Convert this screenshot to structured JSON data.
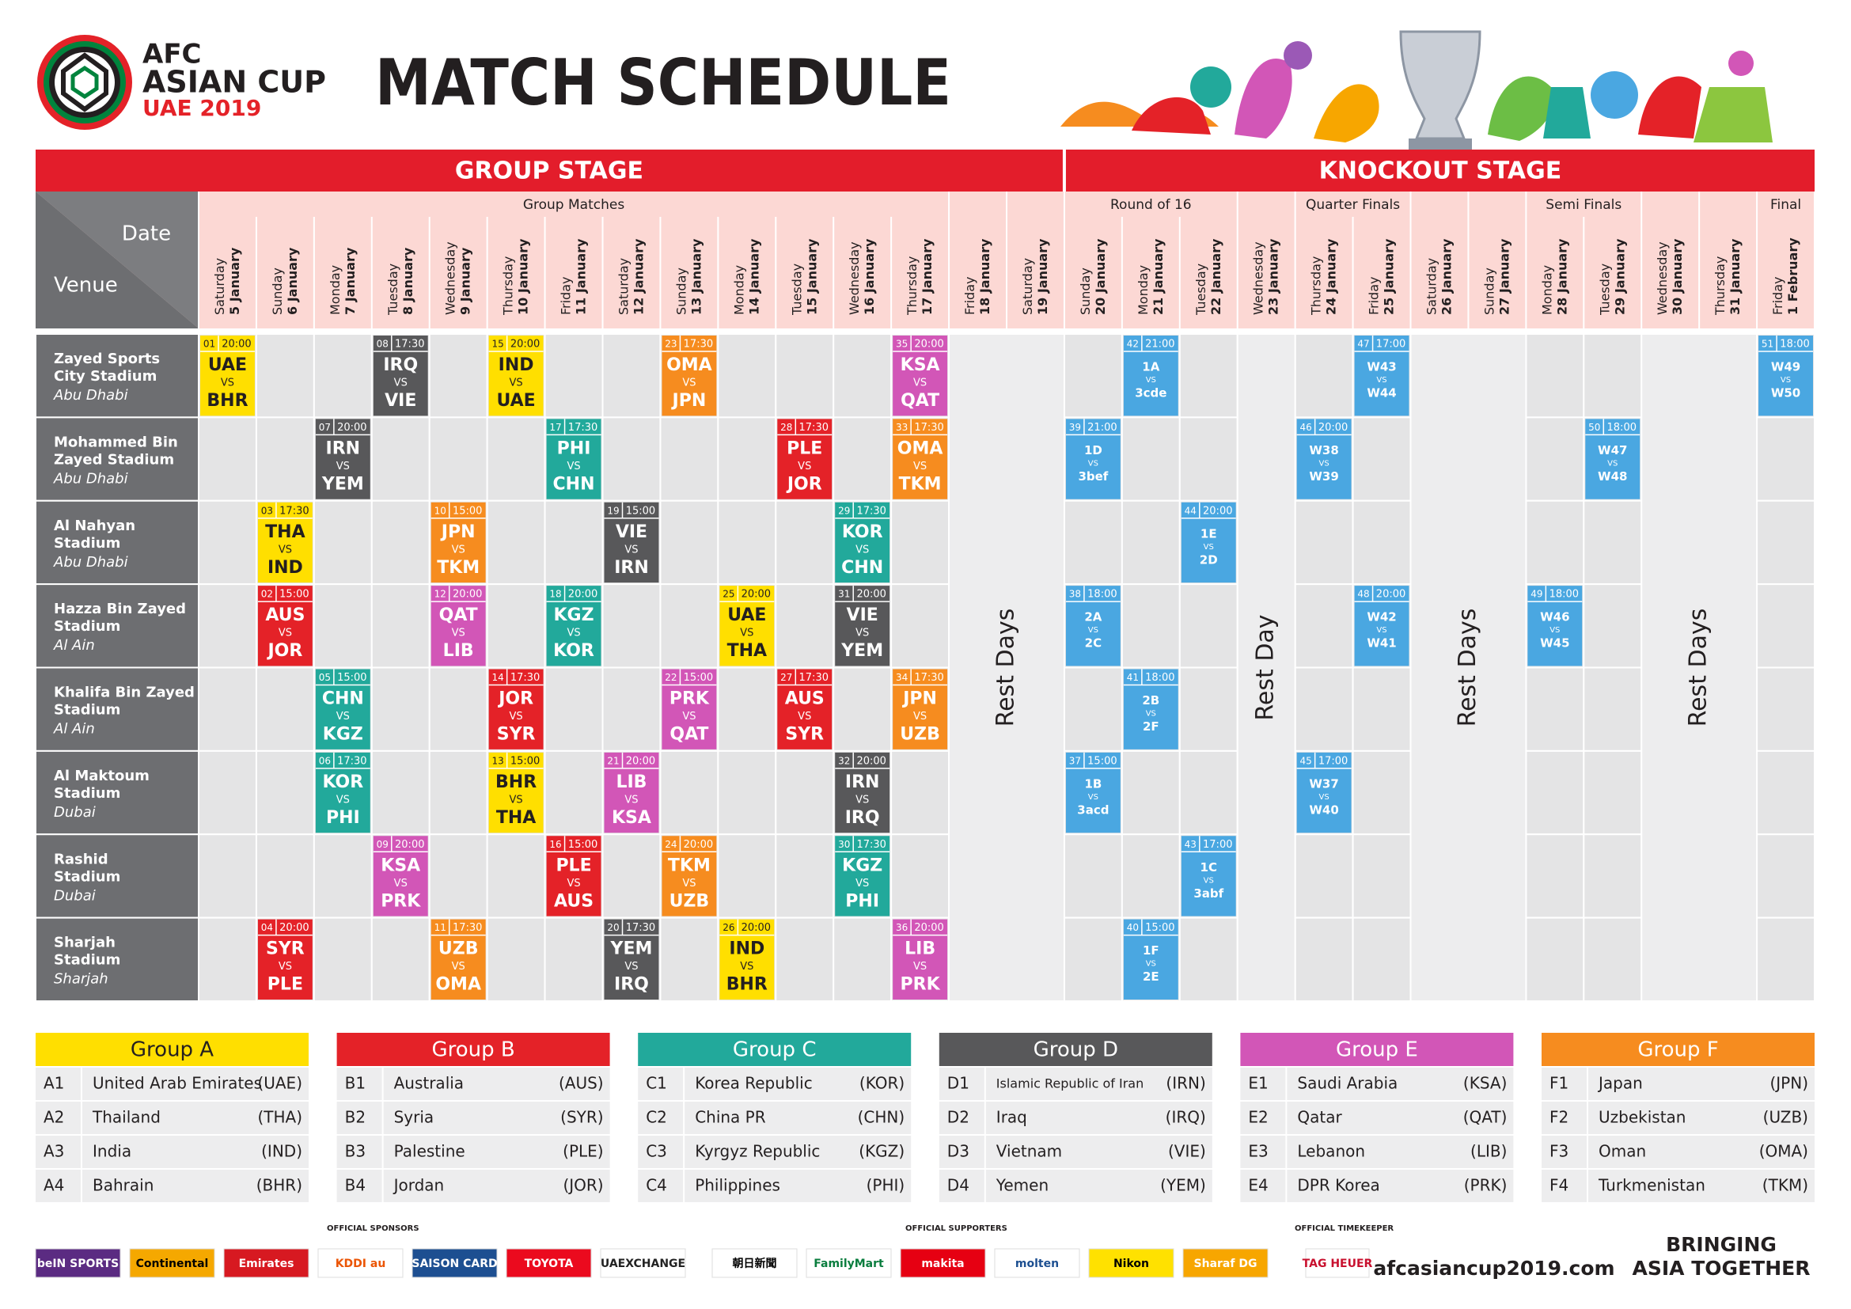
{
  "header": {
    "logo": [
      "AFC",
      "ASIAN CUP",
      "UAE 2019"
    ],
    "title": "MATCH SCHEDULE"
  },
  "schedule": {
    "corner": {
      "date": "Date",
      "venue": "Venue"
    },
    "stages": [
      {
        "title": "GROUP STAGE",
        "from": "5 January",
        "to": "19 January"
      },
      {
        "title": "KNOCKOUT STAGE",
        "from": "20 January",
        "to": "1 February"
      }
    ],
    "rounds": [
      {
        "title": "Group Matches",
        "from": "5 January",
        "to": "17 January"
      },
      {
        "title": "Round of 16",
        "from": "20 January",
        "to": "22 January"
      },
      {
        "title": "Quarter Finals",
        "from": "24 January",
        "to": "25 January"
      },
      {
        "title": "Semi Finals",
        "from": "28 January",
        "to": "29 January"
      },
      {
        "title": "Final",
        "from": "1 February",
        "to": "1 February"
      }
    ],
    "dates": [
      {
        "weekday": "Saturday",
        "day": "5 January"
      },
      {
        "weekday": "Sunday",
        "day": "6 January"
      },
      {
        "weekday": "Monday",
        "day": "7 January"
      },
      {
        "weekday": "Tuesday",
        "day": "8 January"
      },
      {
        "weekday": "Wednesday",
        "day": "9 January"
      },
      {
        "weekday": "Thursday",
        "day": "10 January"
      },
      {
        "weekday": "Friday",
        "day": "11 January"
      },
      {
        "weekday": "Saturday",
        "day": "12 January"
      },
      {
        "weekday": "Sunday",
        "day": "13 January"
      },
      {
        "weekday": "Monday",
        "day": "14 January"
      },
      {
        "weekday": "Tuesday",
        "day": "15 January"
      },
      {
        "weekday": "Wednesday",
        "day": "16 January"
      },
      {
        "weekday": "Thursday",
        "day": "17 January"
      },
      {
        "weekday": "Friday",
        "day": "18 January"
      },
      {
        "weekday": "Saturday",
        "day": "19 January"
      },
      {
        "weekday": "Sunday",
        "day": "20 January"
      },
      {
        "weekday": "Monday",
        "day": "21 January"
      },
      {
        "weekday": "Tuesday",
        "day": "22 January"
      },
      {
        "weekday": "Wednesday",
        "day": "23 January"
      },
      {
        "weekday": "Thursday",
        "day": "24 January"
      },
      {
        "weekday": "Friday",
        "day": "25 January"
      },
      {
        "weekday": "Saturday",
        "day": "26 January"
      },
      {
        "weekday": "Sunday",
        "day": "27 January"
      },
      {
        "weekday": "Monday",
        "day": "28 January"
      },
      {
        "weekday": "Tuesday",
        "day": "29 January"
      },
      {
        "weekday": "Wednesday",
        "day": "30 January"
      },
      {
        "weekday": "Thursday",
        "day": "31 January"
      },
      {
        "weekday": "Friday",
        "day": "1 February"
      }
    ],
    "rest": [
      {
        "label": "Rest Days",
        "from": "18 January",
        "to": "19 January"
      },
      {
        "label": "Rest Day",
        "from": "23 January",
        "to": "23 January"
      },
      {
        "label": "Rest Days",
        "from": "26 January",
        "to": "27 January"
      },
      {
        "label": "Rest Days",
        "from": "30 January",
        "to": "31 January"
      }
    ],
    "vs": "VS",
    "knockout_color": "#4aa7e1",
    "venues": [
      {
        "name": [
          "Zayed Sports",
          "City Stadium"
        ],
        "city": "Abu Dhabi",
        "matches": [
          {
            "date": "5 January",
            "no": "01",
            "time": "20:00",
            "home": "UAE",
            "away": "BHR"
          },
          {
            "date": "8 January",
            "no": "08",
            "time": "17:30",
            "home": "IRQ",
            "away": "VIE"
          },
          {
            "date": "10 January",
            "no": "15",
            "time": "20:00",
            "home": "IND",
            "away": "UAE"
          },
          {
            "date": "13 January",
            "no": "23",
            "time": "17:30",
            "home": "OMA",
            "away": "JPN"
          },
          {
            "date": "17 January",
            "no": "35",
            "time": "20:00",
            "home": "KSA",
            "away": "QAT"
          },
          {
            "date": "21 January",
            "no": "42",
            "time": "21:00",
            "home": "1A",
            "away": "3cde"
          },
          {
            "date": "25 January",
            "no": "47",
            "time": "17:00",
            "home": "W43",
            "away": "W44"
          },
          {
            "date": "1 February",
            "no": "51",
            "time": "18:00",
            "home": "W49",
            "away": "W50"
          }
        ]
      },
      {
        "name": [
          "Mohammed Bin",
          "Zayed Stadium"
        ],
        "city": "Abu Dhabi",
        "matches": [
          {
            "date": "7 January",
            "no": "07",
            "time": "20:00",
            "home": "IRN",
            "away": "YEM"
          },
          {
            "date": "11 January",
            "no": "17",
            "time": "17:30",
            "home": "PHI",
            "away": "CHN"
          },
          {
            "date": "15 January",
            "no": "28",
            "time": "17:30",
            "home": "PLE",
            "away": "JOR"
          },
          {
            "date": "17 January",
            "no": "33",
            "time": "17:30",
            "home": "OMA",
            "away": "TKM"
          },
          {
            "date": "20 January",
            "no": "39",
            "time": "21:00",
            "home": "1D",
            "away": "3bef"
          },
          {
            "date": "24 January",
            "no": "46",
            "time": "20:00",
            "home": "W38",
            "away": "W39"
          },
          {
            "date": "29 January",
            "no": "50",
            "time": "18:00",
            "home": "W47",
            "away": "W48"
          }
        ]
      },
      {
        "name": [
          "Al Nahyan",
          "Stadium"
        ],
        "city": "Abu Dhabi",
        "matches": [
          {
            "date": "6 January",
            "no": "03",
            "time": "17:30",
            "home": "THA",
            "away": "IND"
          },
          {
            "date": "9 January",
            "no": "10",
            "time": "15:00",
            "home": "JPN",
            "away": "TKM"
          },
          {
            "date": "12 January",
            "no": "19",
            "time": "15:00",
            "home": "VIE",
            "away": "IRN"
          },
          {
            "date": "16 January",
            "no": "29",
            "time": "17:30",
            "home": "KOR",
            "away": "CHN"
          },
          {
            "date": "22 January",
            "no": "44",
            "time": "20:00",
            "home": "1E",
            "away": "2D"
          }
        ]
      },
      {
        "name": [
          "Hazza Bin Zayed",
          "Stadium"
        ],
        "city": "Al Ain",
        "matches": [
          {
            "date": "6 January",
            "no": "02",
            "time": "15:00",
            "home": "AUS",
            "away": "JOR"
          },
          {
            "date": "9 January",
            "no": "12",
            "time": "20:00",
            "home": "QAT",
            "away": "LIB"
          },
          {
            "date": "11 January",
            "no": "18",
            "time": "20:00",
            "home": "KGZ",
            "away": "KOR"
          },
          {
            "date": "14 January",
            "no": "25",
            "time": "20:00",
            "home": "UAE",
            "away": "THA"
          },
          {
            "date": "16 January",
            "no": "31",
            "time": "20:00",
            "home": "VIE",
            "away": "YEM"
          },
          {
            "date": "20 January",
            "no": "38",
            "time": "18:00",
            "home": "2A",
            "away": "2C"
          },
          {
            "date": "25 January",
            "no": "48",
            "time": "20:00",
            "home": "W42",
            "away": "W41"
          },
          {
            "date": "28 January",
            "no": "49",
            "time": "18:00",
            "home": "W46",
            "away": "W45"
          }
        ]
      },
      {
        "name": [
          "Khalifa Bin Zayed",
          "Stadium"
        ],
        "city": "Al Ain",
        "matches": [
          {
            "date": "7 January",
            "no": "05",
            "time": "15:00",
            "home": "CHN",
            "away": "KGZ"
          },
          {
            "date": "10 January",
            "no": "14",
            "time": "17:30",
            "home": "JOR",
            "away": "SYR"
          },
          {
            "date": "13 January",
            "no": "22",
            "time": "15:00",
            "home": "PRK",
            "away": "QAT"
          },
          {
            "date": "15 January",
            "no": "27",
            "time": "17:30",
            "home": "AUS",
            "away": "SYR"
          },
          {
            "date": "17 January",
            "no": "34",
            "time": "17:30",
            "home": "JPN",
            "away": "UZB"
          },
          {
            "date": "21 January",
            "no": "41",
            "time": "18:00",
            "home": "2B",
            "away": "2F"
          }
        ]
      },
      {
        "name": [
          "Al Maktoum",
          "Stadium"
        ],
        "city": "Dubai",
        "matches": [
          {
            "date": "7 January",
            "no": "06",
            "time": "17:30",
            "home": "KOR",
            "away": "PHI"
          },
          {
            "date": "10 January",
            "no": "13",
            "time": "15:00",
            "home": "BHR",
            "away": "THA"
          },
          {
            "date": "12 January",
            "no": "21",
            "time": "20:00",
            "home": "LIB",
            "away": "KSA"
          },
          {
            "date": "16 January",
            "no": "32",
            "time": "20:00",
            "home": "IRN",
            "away": "IRQ"
          },
          {
            "date": "20 January",
            "no": "37",
            "time": "15:00",
            "home": "1B",
            "away": "3acd"
          },
          {
            "date": "24 January",
            "no": "45",
            "time": "17:00",
            "home": "W37",
            "away": "W40"
          }
        ]
      },
      {
        "name": [
          "Rashid",
          "Stadium"
        ],
        "city": "Dubai",
        "matches": [
          {
            "date": "8 January",
            "no": "09",
            "time": "20:00",
            "home": "KSA",
            "away": "PRK"
          },
          {
            "date": "11 January",
            "no": "16",
            "time": "15:00",
            "home": "PLE",
            "away": "AUS"
          },
          {
            "date": "13 January",
            "no": "24",
            "time": "20:00",
            "home": "TKM",
            "away": "UZB"
          },
          {
            "date": "16 January",
            "no": "30",
            "time": "17:30",
            "home": "KGZ",
            "away": "PHI"
          },
          {
            "date": "22 January",
            "no": "43",
            "time": "17:00",
            "home": "1C",
            "away": "3abf"
          }
        ]
      },
      {
        "name": [
          "Sharjah",
          "Stadium"
        ],
        "city": "Sharjah",
        "matches": [
          {
            "date": "6 January",
            "no": "04",
            "time": "20:00",
            "home": "SYR",
            "away": "PLE"
          },
          {
            "date": "9 January",
            "no": "11",
            "time": "17:30",
            "home": "UZB",
            "away": "OMA"
          },
          {
            "date": "12 January",
            "no": "20",
            "time": "17:30",
            "home": "YEM",
            "away": "IRQ"
          },
          {
            "date": "14 January",
            "no": "26",
            "time": "20:00",
            "home": "IND",
            "away": "BHR"
          },
          {
            "date": "17 January",
            "no": "36",
            "time": "20:00",
            "home": "LIB",
            "away": "PRK"
          },
          {
            "date": "21 January",
            "no": "40",
            "time": "15:00",
            "home": "1F",
            "away": "2E"
          }
        ]
      }
    ]
  },
  "groups": [
    {
      "title": "Group A",
      "color": "#ffdf00",
      "text_color": "#231f20",
      "teams": [
        {
          "slot": "A1",
          "name": "United Arab Emirates",
          "code": "(UAE)"
        },
        {
          "slot": "A2",
          "name": "Thailand",
          "code": "(THA)"
        },
        {
          "slot": "A3",
          "name": "India",
          "code": "(IND)"
        },
        {
          "slot": "A4",
          "name": "Bahrain",
          "code": "(BHR)"
        }
      ]
    },
    {
      "title": "Group B",
      "color": "#e42228",
      "text_color": "#ffffff",
      "teams": [
        {
          "slot": "B1",
          "name": "Australia",
          "code": "(AUS)"
        },
        {
          "slot": "B2",
          "name": "Syria",
          "code": "(SYR)"
        },
        {
          "slot": "B3",
          "name": "Palestine",
          "code": "(PLE)"
        },
        {
          "slot": "B4",
          "name": "Jordan",
          "code": "(JOR)"
        }
      ]
    },
    {
      "title": "Group C",
      "color": "#22a99b",
      "text_color": "#ffffff",
      "teams": [
        {
          "slot": "C1",
          "name": "Korea Republic",
          "code": "(KOR)"
        },
        {
          "slot": "C2",
          "name": "China PR",
          "code": "(CHN)"
        },
        {
          "slot": "C3",
          "name": "Kyrgyz Republic",
          "code": "(KGZ)"
        },
        {
          "slot": "C4",
          "name": "Philippines",
          "code": "(PHI)"
        }
      ]
    },
    {
      "title": "Group D",
      "color": "#58585a",
      "text_color": "#ffffff",
      "teams": [
        {
          "slot": "D1",
          "name": "Islamic Republic of Iran",
          "code": "(IRN)"
        },
        {
          "slot": "D2",
          "name": "Iraq",
          "code": "(IRQ)"
        },
        {
          "slot": "D3",
          "name": "Vietnam",
          "code": "(VIE)"
        },
        {
          "slot": "D4",
          "name": "Yemen",
          "code": "(YEM)"
        }
      ]
    },
    {
      "title": "Group E",
      "color": "#d256b7",
      "text_color": "#ffffff",
      "teams": [
        {
          "slot": "E1",
          "name": "Saudi Arabia",
          "code": "(KSA)"
        },
        {
          "slot": "E2",
          "name": "Qatar",
          "code": "(QAT)"
        },
        {
          "slot": "E3",
          "name": "Lebanon",
          "code": "(LIB)"
        },
        {
          "slot": "E4",
          "name": "DPR Korea",
          "code": "(PRK)"
        }
      ]
    },
    {
      "title": "Group F",
      "color": "#f68c1f",
      "text_color": "#ffffff",
      "teams": [
        {
          "slot": "F1",
          "name": "Japan",
          "code": "(JPN)"
        },
        {
          "slot": "F2",
          "name": "Uzbekistan",
          "code": "(UZB)"
        },
        {
          "slot": "F3",
          "name": "Oman",
          "code": "(OMA)"
        },
        {
          "slot": "F4",
          "name": "Turkmenistan",
          "code": "(TKM)"
        }
      ]
    }
  ],
  "footer": {
    "sponsors_label": "OFFICIAL SPONSORS",
    "sponsors": [
      {
        "name": "beIN SPORTS",
        "bg": "#5b2b82",
        "fg": "#ffffff"
      },
      {
        "name": "Continental",
        "bg": "#f5a800",
        "fg": "#000000"
      },
      {
        "name": "Emirates",
        "bg": "#d71921",
        "fg": "#ffffff"
      },
      {
        "name": "KDDI au",
        "bg": "#ffffff",
        "fg": "#eb5505"
      },
      {
        "name": "SAISON CARD",
        "bg": "#1d4f91",
        "fg": "#ffffff"
      },
      {
        "name": "TOYOTA",
        "bg": "#eb0a1e",
        "fg": "#ffffff"
      },
      {
        "name": "UAEXCHANGE",
        "bg": "#ffffff",
        "fg": "#222222"
      }
    ],
    "supporters_label": "OFFICIAL SUPPORTERS",
    "supporters": [
      {
        "name": "朝日新聞",
        "bg": "#ffffff",
        "fg": "#000000"
      },
      {
        "name": "FamilyMart",
        "bg": "#ffffff",
        "fg": "#0a7d3e"
      },
      {
        "name": "makita",
        "bg": "#e60012",
        "fg": "#ffffff"
      },
      {
        "name": "molten",
        "bg": "#ffffff",
        "fg": "#1d4f91"
      },
      {
        "name": "Nikon",
        "bg": "#ffe100",
        "fg": "#000000"
      },
      {
        "name": "Sharaf DG",
        "bg": "#f7a600",
        "fg": "#ffffff"
      }
    ],
    "timekeeper_label": "OFFICIAL TIMEKEEPER",
    "timekeeper": [
      {
        "name": "TAG HEUER",
        "bg": "#ffffff",
        "fg": "#c8102e"
      }
    ],
    "website": "afcasiancup2019.com",
    "slogan": [
      "BRINGING",
      "ASIA TOGETHER"
    ]
  }
}
